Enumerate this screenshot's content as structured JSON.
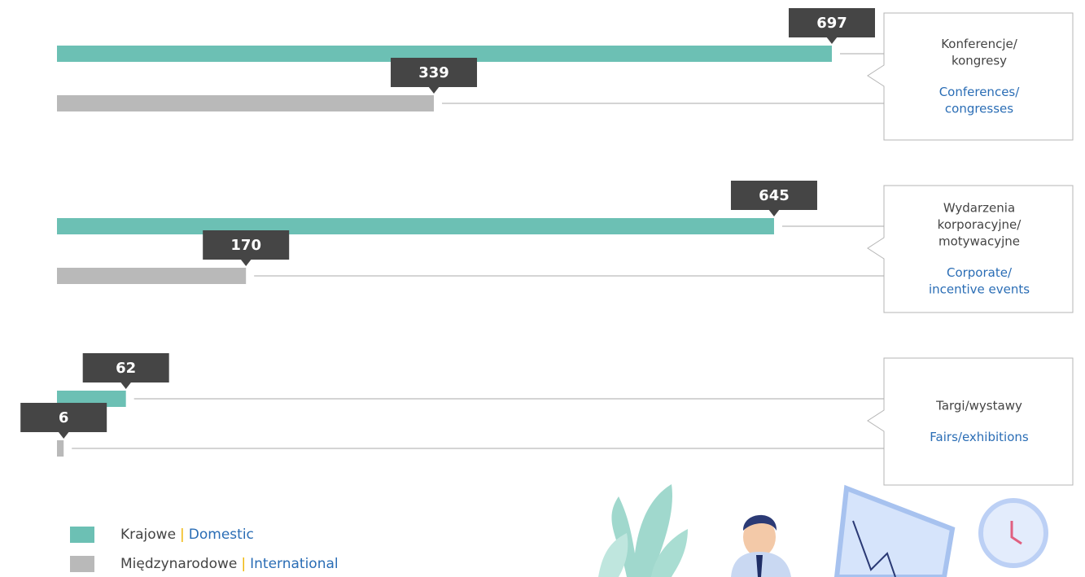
{
  "chart_data": {
    "type": "bar",
    "orientation": "horizontal",
    "categories": [
      [
        "Konferencje/",
        "kongresy"
      ],
      [
        "Wydarzenia",
        "korporacyjne/",
        "motywacyjne"
      ],
      [
        "Targi/wystawy"
      ]
    ],
    "categories_en": [
      [
        "Conferences/",
        "congresses"
      ],
      [
        "Corporate/",
        "incentive events"
      ],
      [
        "Fairs/exhibitions"
      ]
    ],
    "series": [
      {
        "name": "Krajowe",
        "name_en": "Domestic",
        "color": "#6cc0b4",
        "values": [
          697,
          645,
          62
        ]
      },
      {
        "name": "Międzynarodowe",
        "name_en": "International",
        "color": "#b9b9b9",
        "values": [
          339,
          170,
          6
        ]
      }
    ],
    "legend_separator": "|"
  }
}
